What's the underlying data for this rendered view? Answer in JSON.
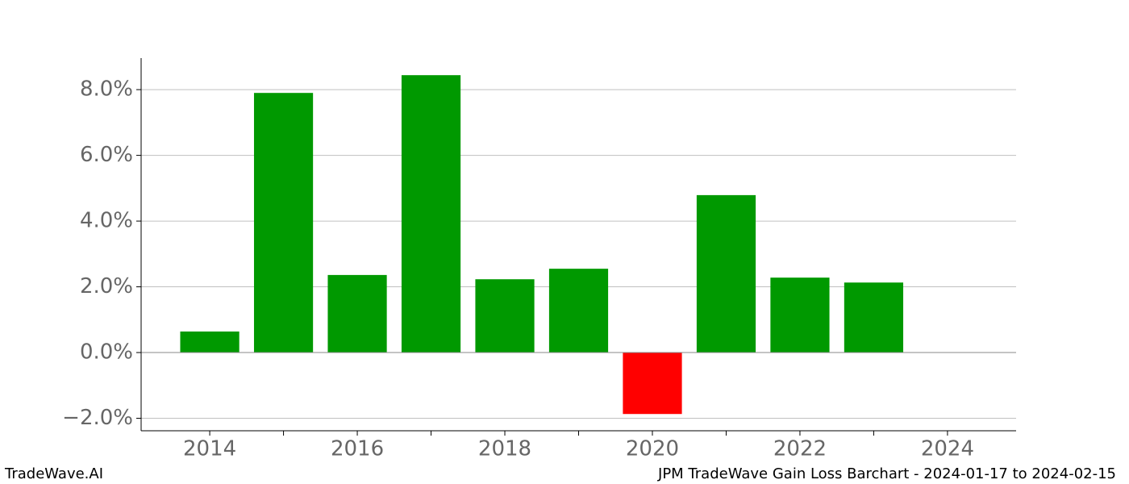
{
  "chart_data": {
    "type": "bar",
    "x": [
      2014,
      2015,
      2016,
      2017,
      2018,
      2019,
      2020,
      2021,
      2022,
      2023
    ],
    "values": [
      0.64,
      7.9,
      2.36,
      8.44,
      2.23,
      2.55,
      -1.87,
      4.79,
      2.28,
      2.13
    ],
    "positive_color": "#009900",
    "negative_color": "#ff0000",
    "xlim": [
      2013.07,
      2024.93
    ],
    "xticks": [
      2014,
      2016,
      2018,
      2020,
      2022,
      2024
    ],
    "xminorticks": [
      2015,
      2017,
      2019,
      2021,
      2023
    ],
    "ylim": [
      -2.38,
      8.96
    ],
    "yticks": [
      {
        "value": -2,
        "label": "−2.0%"
      },
      {
        "value": 0,
        "label": "0.0%"
      },
      {
        "value": 2,
        "label": "2.0%"
      },
      {
        "value": 4,
        "label": "4.0%"
      },
      {
        "value": 6,
        "label": "6.0%"
      },
      {
        "value": 8,
        "label": "8.0%"
      }
    ],
    "grid": true
  },
  "footer": {
    "left": "TradeWave.AI",
    "right": "JPM TradeWave Gain Loss Barchart - 2024-01-17 to 2024-02-15"
  }
}
